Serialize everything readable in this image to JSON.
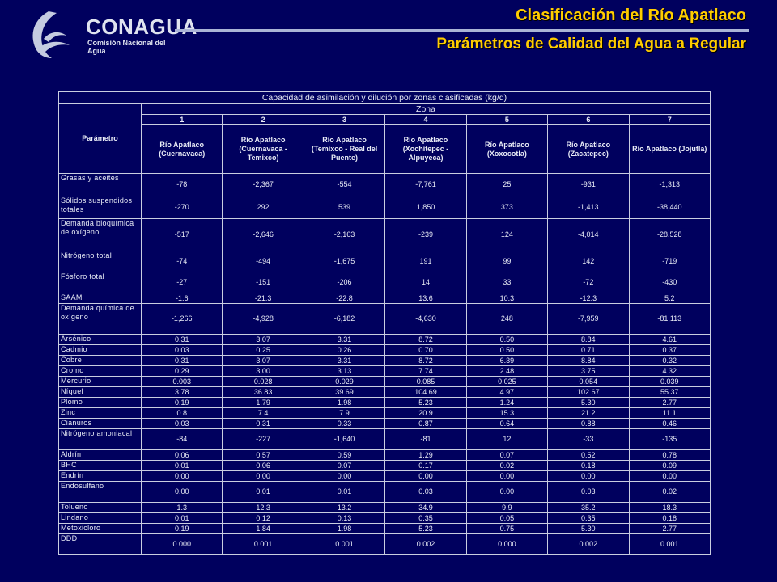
{
  "header": {
    "logo_text": "CONAGUA",
    "logo_subtitle": "Comisión Nacional del Agua",
    "title": "Clasificación del Río Apatlaco",
    "subtitle": "Parámetros de Calidad del Agua a Regular"
  },
  "table": {
    "caption": "Capacidad de asimilación y dilución por zonas clasificadas (kg/d)",
    "param_header": "Parámetro",
    "zone_header": "Zona",
    "zone_numbers": [
      "1",
      "2",
      "3",
      "4",
      "5",
      "6",
      "7"
    ],
    "zone_names": [
      "Río Apatlaco (Cuernavaca)",
      "Río Apatlaco (Cuernavaca - Temixco)",
      "Río Apatlaco (Temixco - Real del Puente)",
      "Río Apatlaco (Xochitepec - Alpuyeca)",
      "Río Apatlaco (Xoxocotla)",
      "Río Apatlaco (Zacatepec)",
      "Río Apatlaco (Jojutla)"
    ],
    "rows": [
      {
        "param": "Grasas y aceites",
        "values": [
          "-78",
          "-2,367",
          "-554",
          "-7,761",
          "25",
          "-931",
          "-1,313"
        ]
      },
      {
        "param": "Sólidos suspendidos totales",
        "values": [
          "-270",
          "292",
          "539",
          "1,850",
          "373",
          "-1,413",
          "-38,440"
        ]
      },
      {
        "param": "Demanda bioquímica de oxígeno",
        "values": [
          "-517",
          "-2,646",
          "-2,163",
          "-239",
          "124",
          "-4,014",
          "-28,528"
        ]
      },
      {
        "param": "Nitrógeno total",
        "values": [
          "-74",
          "-494",
          "-1,675",
          "191",
          "99",
          "142",
          "-719"
        ]
      },
      {
        "param": "Fósforo total",
        "values": [
          "-27",
          "-151",
          "-206",
          "14",
          "33",
          "-72",
          "-430"
        ]
      },
      {
        "param": "SAAM",
        "values": [
          "-1.6",
          "-21.3",
          "-22.8",
          "13.6",
          "10.3",
          "-12.3",
          "5.2"
        ]
      },
      {
        "param": "Demanda química de oxígeno",
        "values": [
          "-1,266",
          "-4,928",
          "-6,182",
          "-4,630",
          "248",
          "-7,959",
          "-81,113"
        ]
      },
      {
        "param": "Arsénico",
        "values": [
          "0.31",
          "3.07",
          "3.31",
          "8.72",
          "0.50",
          "8.84",
          "4.61"
        ]
      },
      {
        "param": "Cadmio",
        "values": [
          "0.03",
          "0.25",
          "0.26",
          "0.70",
          "0.50",
          "0.71",
          "0.37"
        ]
      },
      {
        "param": "Cobre",
        "values": [
          "0.31",
          "3.07",
          "3.31",
          "8.72",
          "6.39",
          "8.84",
          "0.32"
        ]
      },
      {
        "param": "Cromo",
        "values": [
          "0.29",
          "3.00",
          "3.13",
          "7.74",
          "2.48",
          "3.75",
          "4.32"
        ]
      },
      {
        "param": "Mercurio",
        "values": [
          "0.003",
          "0.028",
          "0.029",
          "0.085",
          "0.025",
          "0.054",
          "0.039"
        ]
      },
      {
        "param": "Níquel",
        "values": [
          "3.78",
          "36.83",
          "39.69",
          "104.69",
          "4.97",
          "102.67",
          "55.37"
        ]
      },
      {
        "param": "Plomo",
        "values": [
          "0.19",
          "1.79",
          "1.98",
          "5.23",
          "1.24",
          "5.30",
          "2.77"
        ]
      },
      {
        "param": "Zinc",
        "values": [
          "0.8",
          "7.4",
          "7.9",
          "20.9",
          "15.3",
          "21.2",
          "11.1"
        ]
      },
      {
        "param": "Cianuros",
        "values": [
          "0.03",
          "0.31",
          "0.33",
          "0.87",
          "0.64",
          "0.88",
          "0.46"
        ]
      },
      {
        "param": "Nitrógeno amoniacal",
        "values": [
          "-84",
          "-227",
          "-1,640",
          "-81",
          "12",
          "-33",
          "-135"
        ]
      },
      {
        "param": "Aldrín",
        "values": [
          "0.06",
          "0.57",
          "0.59",
          "1.29",
          "0.07",
          "0.52",
          "0.78"
        ]
      },
      {
        "param": "BHC",
        "values": [
          "0.01",
          "0.06",
          "0.07",
          "0.17",
          "0.02",
          "0.18",
          "0.09"
        ]
      },
      {
        "param": "Endrín",
        "values": [
          "0.00",
          "0.00",
          "0.00",
          "0.00",
          "0.00",
          "0.00",
          "0.00"
        ]
      },
      {
        "param": "Endosulfano",
        "values": [
          "0.00",
          "0.01",
          "0.01",
          "0.03",
          "0.00",
          "0.03",
          "0.02"
        ]
      },
      {
        "param": "Tolueno",
        "values": [
          "1.3",
          "12.3",
          "13.2",
          "34.9",
          "9.9",
          "35.2",
          "18.3"
        ]
      },
      {
        "param": "Lindano",
        "values": [
          "0.01",
          "0.12",
          "0.13",
          "0.35",
          "0.05",
          "0.35",
          "0.18"
        ]
      },
      {
        "param": "Metoxicloro",
        "values": [
          "0.19",
          "1.84",
          "1.98",
          "5.23",
          "0.75",
          "5.30",
          "2.77"
        ]
      },
      {
        "param": "DDD",
        "values": [
          "0.000",
          "0.001",
          "0.001",
          "0.002",
          "0.000",
          "0.002",
          "0.001"
        ]
      }
    ]
  },
  "colors": {
    "background": "#00005e",
    "title": "#ffcc00",
    "rule": "#aab4d6",
    "grid_line": "#c9cde0",
    "text": "#e9ecf6"
  }
}
